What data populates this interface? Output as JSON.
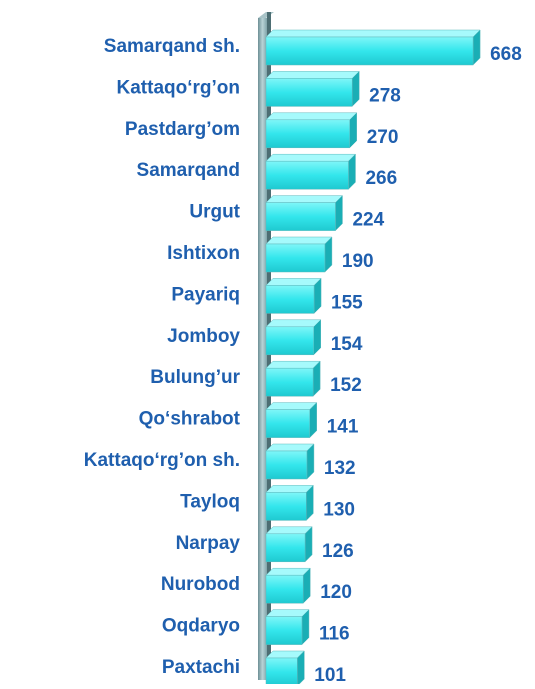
{
  "chart_data": {
    "type": "bar",
    "orientation": "horizontal",
    "color": "#33e6ec",
    "categories": [
      "Samarqand sh.",
      "Kattaqo‘rg’on",
      "Pastdarg’om",
      "Samarqand",
      "Urgut",
      "Ishtixon",
      "Payariq",
      "Jomboy",
      "Bulung’ur",
      "Qo‘shrabot",
      "Kattaqo‘rg’on sh.",
      "Tayloq",
      "Narpay",
      "Nurobod",
      "Oqdaryo",
      "Paxtachi"
    ],
    "values": [
      668,
      278,
      270,
      266,
      224,
      190,
      155,
      154,
      152,
      141,
      132,
      130,
      126,
      120,
      116,
      101
    ]
  }
}
